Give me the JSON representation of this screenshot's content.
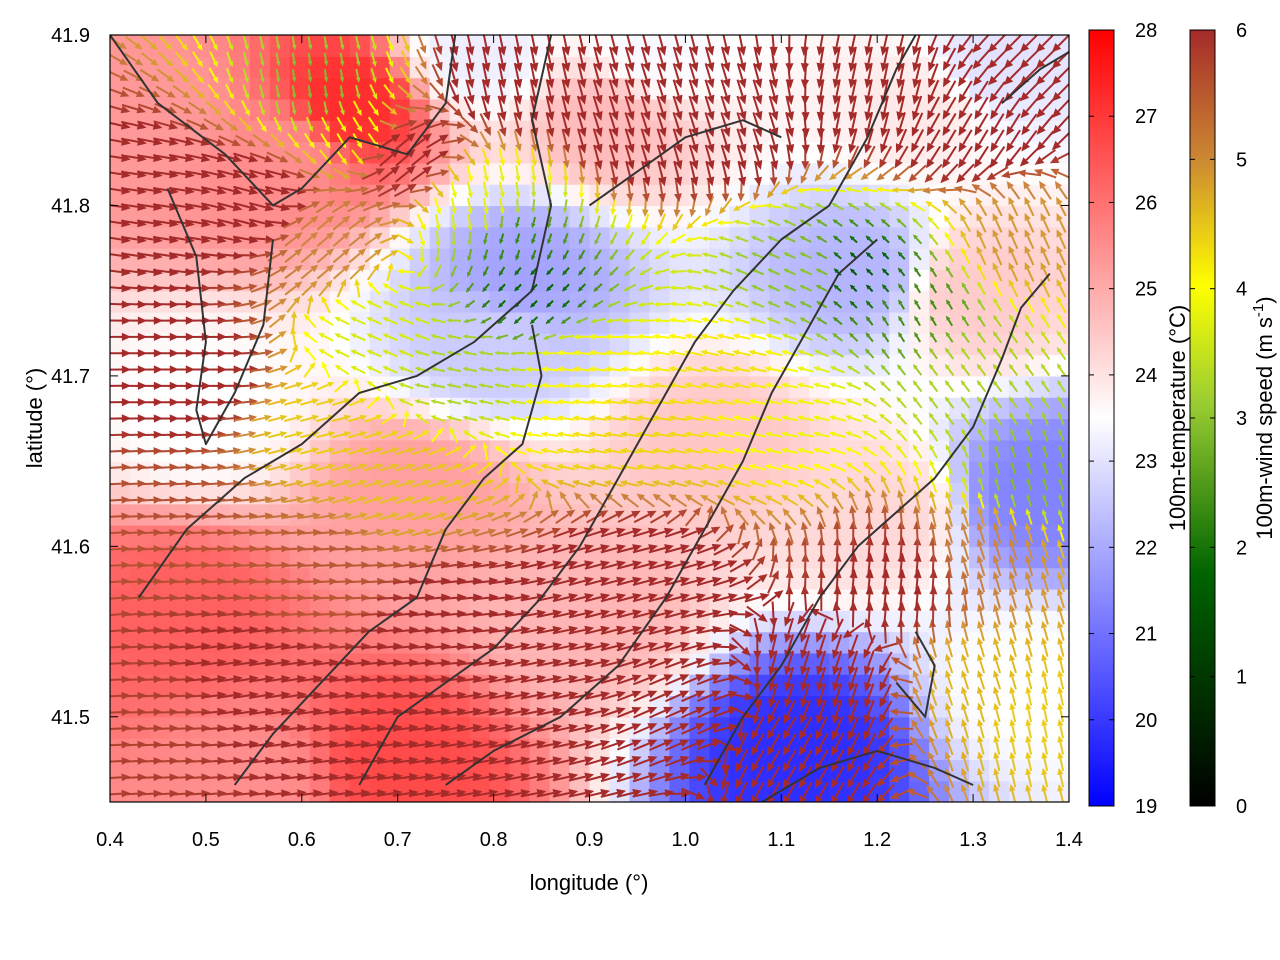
{
  "chart_data": {
    "type": "heatmap",
    "title": "",
    "xlabel": "longitude (°)",
    "ylabel": "latitude (°)",
    "xlim": [
      0.4,
      1.4
    ],
    "ylim": [
      41.45,
      41.9
    ],
    "xticks": [
      0.4,
      0.5,
      0.6,
      0.7,
      0.8,
      0.9,
      1.0,
      1.1,
      1.2,
      1.3,
      1.4
    ],
    "yticks": [
      41.5,
      41.6,
      41.7,
      41.8,
      41.9
    ],
    "xtick_labels": [
      "0.4",
      "0.5",
      "0.6",
      "0.7",
      "0.8",
      "0.9",
      "1.0",
      "1.1",
      "1.2",
      "1.3",
      "1.4"
    ],
    "ytick_labels": [
      "41.5",
      "41.6",
      "41.7",
      "41.8",
      "41.9"
    ],
    "grid": false,
    "temperature_colorbar": {
      "label": "100m-temperature (°C)",
      "range": [
        19,
        28
      ],
      "ticks": [
        19,
        20,
        21,
        22,
        23,
        24,
        25,
        26,
        27,
        28
      ],
      "tick_labels": [
        "19",
        "20",
        "21",
        "22",
        "23",
        "24",
        "25",
        "26",
        "27",
        "28"
      ],
      "colors": [
        "#0000ff",
        "#ffffff",
        "#ff0000"
      ]
    },
    "windspeed_colorbar": {
      "label_main": "100m-wind speed (m s",
      "label_sup": "-1",
      "label_end": ")",
      "range": [
        0,
        6
      ],
      "ticks": [
        0,
        1,
        2,
        3,
        4,
        5,
        6
      ],
      "tick_labels": [
        "0",
        "1",
        "2",
        "3",
        "4",
        "5",
        "6"
      ],
      "colors": [
        "#000000",
        "#006400",
        "#9acd32",
        "#ffff00",
        "#cd853f",
        "#a52a2a"
      ]
    },
    "temperature_field": [
      {
        "lon": 0.47,
        "lat": 41.56,
        "t": 26.3
      },
      {
        "lon": 0.7,
        "lat": 41.47,
        "t": 26.7
      },
      {
        "lon": 0.65,
        "lat": 41.86,
        "t": 27.2
      },
      {
        "lon": 0.58,
        "lat": 41.83,
        "t": 25.5
      },
      {
        "lon": 0.5,
        "lat": 41.68,
        "t": 23.5
      },
      {
        "lon": 0.8,
        "lat": 41.72,
        "t": 22.6
      },
      {
        "lon": 0.83,
        "lat": 41.76,
        "t": 21.9
      },
      {
        "lon": 1.18,
        "lat": 41.76,
        "t": 22.2
      },
      {
        "lon": 1.12,
        "lat": 41.48,
        "t": 19.8
      },
      {
        "lon": 1.37,
        "lat": 41.63,
        "t": 21.3
      },
      {
        "lon": 0.9,
        "lat": 41.56,
        "t": 24.8
      },
      {
        "lon": 0.72,
        "lat": 41.63,
        "t": 25.2
      },
      {
        "lon": 1.03,
        "lat": 41.66,
        "t": 24.5
      },
      {
        "lon": 0.92,
        "lat": 41.85,
        "t": 24.7
      },
      {
        "lon": 1.25,
        "lat": 41.86,
        "t": 23.9
      },
      {
        "lon": 1.3,
        "lat": 41.75,
        "t": 24.4
      },
      {
        "lon": 1.36,
        "lat": 41.52,
        "t": 23.5
      },
      {
        "lon": 0.45,
        "lat": 41.85,
        "t": 25.3
      },
      {
        "lon": 1.32,
        "lat": 41.88,
        "t": 23.0
      },
      {
        "lon": 0.97,
        "lat": 41.89,
        "t": 23.4
      },
      {
        "lon": 0.78,
        "lat": 41.89,
        "t": 23.2
      },
      {
        "lon": 1.2,
        "lat": 41.62,
        "t": 24.2
      },
      {
        "lon": 0.55,
        "lat": 41.46,
        "t": 25.5
      }
    ],
    "wind_field": [
      {
        "lon": 0.45,
        "lat": 41.62,
        "u": 0.98,
        "v": 0.05,
        "s": 5.5
      },
      {
        "lon": 0.45,
        "lat": 41.5,
        "u": 0.99,
        "v": 0.05,
        "s": 5.7
      },
      {
        "lon": 0.55,
        "lat": 41.52,
        "u": 0.97,
        "v": 0.15,
        "s": 6.2
      },
      {
        "lon": 0.55,
        "lat": 41.8,
        "u": 0.95,
        "v": -0.25,
        "s": 6.5
      },
      {
        "lon": 0.45,
        "lat": 41.8,
        "u": 0.98,
        "v": -0.15,
        "s": 6.5
      },
      {
        "lon": 0.48,
        "lat": 41.7,
        "u": 0.99,
        "v": 0.0,
        "s": 6.3
      },
      {
        "lon": 0.62,
        "lat": 41.87,
        "u": 0.15,
        "v": -0.98,
        "s": 2.2
      },
      {
        "lon": 0.66,
        "lat": 41.84,
        "u": 0.5,
        "v": -0.85,
        "s": 3.5
      },
      {
        "lon": 0.62,
        "lat": 41.78,
        "u": 0.7,
        "v": 0.6,
        "s": 4.8
      },
      {
        "lon": 0.7,
        "lat": 41.83,
        "u": 0.75,
        "v": 0.65,
        "s": 6.5
      },
      {
        "lon": 0.62,
        "lat": 41.67,
        "u": 0.97,
        "v": 0.25,
        "s": 4.1
      },
      {
        "lon": 0.7,
        "lat": 41.64,
        "u": 0.96,
        "v": 0.3,
        "s": 4.2
      },
      {
        "lon": 0.68,
        "lat": 41.72,
        "u": -0.9,
        "v": 0.4,
        "s": 3.1
      },
      {
        "lon": 0.76,
        "lat": 41.7,
        "u": -0.95,
        "v": 0.2,
        "s": 2.6
      },
      {
        "lon": 0.82,
        "lat": 41.78,
        "u": -0.3,
        "v": -0.95,
        "s": 1.6
      },
      {
        "lon": 0.84,
        "lat": 41.75,
        "u": -0.6,
        "v": -0.6,
        "s": 1.2
      },
      {
        "lon": 0.79,
        "lat": 41.8,
        "u": 0.2,
        "v": -0.98,
        "s": 3.3
      },
      {
        "lon": 0.9,
        "lat": 41.7,
        "u": -0.98,
        "v": 0.1,
        "s": 3.7
      },
      {
        "lon": 0.95,
        "lat": 41.67,
        "u": -0.98,
        "v": 0.15,
        "s": 4.0
      },
      {
        "lon": 1.05,
        "lat": 41.7,
        "u": -0.98,
        "v": 0.2,
        "s": 3.9
      },
      {
        "lon": 1.1,
        "lat": 41.68,
        "u": -0.97,
        "v": 0.2,
        "s": 3.4
      },
      {
        "lon": 1.12,
        "lat": 41.76,
        "u": -0.9,
        "v": 0.4,
        "s": 2.3
      },
      {
        "lon": 1.18,
        "lat": 41.76,
        "u": -0.7,
        "v": 0.7,
        "s": 1.1
      },
      {
        "lon": 1.24,
        "lat": 41.74,
        "u": -0.5,
        "v": 0.85,
        "s": 1.7
      },
      {
        "lon": 1.3,
        "lat": 41.7,
        "u": -0.6,
        "v": 0.8,
        "s": 2.6
      },
      {
        "lon": 1.36,
        "lat": 41.64,
        "u": -0.3,
        "v": 0.95,
        "s": 2.2
      },
      {
        "lon": 1.35,
        "lat": 41.78,
        "u": -0.4,
        "v": 0.9,
        "s": 4.6
      },
      {
        "lon": 1.32,
        "lat": 41.6,
        "u": -0.3,
        "v": 0.95,
        "s": 4.8
      },
      {
        "lon": 1.3,
        "lat": 41.52,
        "u": -0.3,
        "v": 0.95,
        "s": 4.3
      },
      {
        "lon": 1.37,
        "lat": 41.5,
        "u": -0.2,
        "v": 0.97,
        "s": 4.1
      },
      {
        "lon": 0.95,
        "lat": 41.58,
        "u": 0.96,
        "v": 0.25,
        "s": 6.6
      },
      {
        "lon": 1.0,
        "lat": 41.5,
        "u": 0.9,
        "v": 0.4,
        "s": 6.6
      },
      {
        "lon": 0.85,
        "lat": 41.52,
        "u": 0.97,
        "v": 0.2,
        "s": 6.6
      },
      {
        "lon": 0.75,
        "lat": 41.55,
        "u": 0.99,
        "v": 0.1,
        "s": 6.4
      },
      {
        "lon": 0.62,
        "lat": 41.58,
        "u": 0.99,
        "v": 0.05,
        "s": 5.4
      },
      {
        "lon": 1.15,
        "lat": 41.52,
        "u": -0.3,
        "v": -0.95,
        "s": 6.4
      },
      {
        "lon": 1.1,
        "lat": 41.48,
        "u": -0.5,
        "v": -0.85,
        "s": 6.3
      },
      {
        "lon": 1.22,
        "lat": 41.58,
        "u": 0.1,
        "v": 0.99,
        "s": 6.0
      },
      {
        "lon": 1.05,
        "lat": 41.85,
        "u": 0.3,
        "v": -0.95,
        "s": 6.5
      },
      {
        "lon": 1.2,
        "lat": 41.87,
        "u": -0.2,
        "v": -0.97,
        "s": 6.5
      },
      {
        "lon": 0.95,
        "lat": 41.85,
        "u": 0.3,
        "v": -0.95,
        "s": 6.6
      },
      {
        "lon": 0.82,
        "lat": 41.88,
        "u": 0.2,
        "v": -0.97,
        "s": 6.6
      },
      {
        "lon": 1.3,
        "lat": 41.85,
        "u": -0.5,
        "v": -0.85,
        "s": 6.5
      },
      {
        "lon": 1.36,
        "lat": 41.88,
        "u": -0.7,
        "v": -0.7,
        "s": 6.5
      }
    ],
    "contours": [
      [
        [
          0.4,
          41.9
        ],
        [
          0.45,
          41.86
        ],
        [
          0.52,
          41.83
        ],
        [
          0.57,
          41.8
        ],
        [
          0.6,
          41.81
        ],
        [
          0.65,
          41.84
        ],
        [
          0.71,
          41.83
        ],
        [
          0.75,
          41.86
        ],
        [
          0.76,
          41.9
        ]
      ],
      [
        [
          0.46,
          41.81
        ],
        [
          0.49,
          41.77
        ],
        [
          0.5,
          41.72
        ],
        [
          0.49,
          41.68
        ],
        [
          0.5,
          41.66
        ],
        [
          0.53,
          41.69
        ],
        [
          0.56,
          41.73
        ],
        [
          0.57,
          41.78
        ]
      ],
      [
        [
          0.43,
          41.57
        ],
        [
          0.48,
          41.61
        ],
        [
          0.54,
          41.64
        ],
        [
          0.6,
          41.66
        ],
        [
          0.66,
          41.69
        ],
        [
          0.72,
          41.7
        ],
        [
          0.78,
          41.72
        ],
        [
          0.84,
          41.75
        ],
        [
          0.86,
          41.8
        ],
        [
          0.84,
          41.85
        ],
        [
          0.86,
          41.9
        ]
      ],
      [
        [
          0.53,
          41.46
        ],
        [
          0.57,
          41.49
        ],
        [
          0.62,
          41.52
        ],
        [
          0.67,
          41.55
        ],
        [
          0.72,
          41.57
        ],
        [
          0.75,
          41.61
        ],
        [
          0.79,
          41.64
        ],
        [
          0.83,
          41.66
        ],
        [
          0.85,
          41.7
        ],
        [
          0.84,
          41.73
        ]
      ],
      [
        [
          0.66,
          41.46
        ],
        [
          0.7,
          41.5
        ],
        [
          0.75,
          41.52
        ],
        [
          0.8,
          41.54
        ],
        [
          0.85,
          41.57
        ],
        [
          0.89,
          41.6
        ],
        [
          0.93,
          41.64
        ],
        [
          0.97,
          41.68
        ],
        [
          1.01,
          41.72
        ],
        [
          1.05,
          41.75
        ],
        [
          1.1,
          41.78
        ],
        [
          1.15,
          41.8
        ],
        [
          1.19,
          41.84
        ],
        [
          1.22,
          41.88
        ],
        [
          1.24,
          41.9
        ]
      ],
      [
        [
          0.75,
          41.46
        ],
        [
          0.8,
          41.48
        ],
        [
          0.87,
          41.5
        ],
        [
          0.93,
          41.53
        ],
        [
          0.98,
          41.57
        ],
        [
          1.02,
          41.61
        ],
        [
          1.06,
          41.65
        ],
        [
          1.09,
          41.69
        ],
        [
          1.13,
          41.73
        ],
        [
          1.16,
          41.76
        ],
        [
          1.2,
          41.78
        ]
      ],
      [
        [
          1.02,
          41.46
        ],
        [
          1.06,
          41.5
        ],
        [
          1.1,
          41.53
        ],
        [
          1.14,
          41.57
        ],
        [
          1.18,
          41.6
        ],
        [
          1.22,
          41.62
        ],
        [
          1.26,
          41.64
        ],
        [
          1.3,
          41.67
        ],
        [
          1.33,
          41.71
        ],
        [
          1.35,
          41.74
        ],
        [
          1.38,
          41.76
        ]
      ],
      [
        [
          1.08,
          41.45
        ],
        [
          1.14,
          41.47
        ],
        [
          1.2,
          41.48
        ],
        [
          1.26,
          41.47
        ],
        [
          1.3,
          41.46
        ]
      ],
      [
        [
          1.22,
          41.52
        ],
        [
          1.25,
          41.5
        ],
        [
          1.26,
          41.53
        ],
        [
          1.24,
          41.55
        ]
      ],
      [
        [
          0.9,
          41.8
        ],
        [
          0.95,
          41.82
        ],
        [
          1.0,
          41.84
        ],
        [
          1.06,
          41.85
        ],
        [
          1.1,
          41.84
        ]
      ],
      [
        [
          1.33,
          41.86
        ],
        [
          1.37,
          41.88
        ],
        [
          1.4,
          41.89
        ]
      ]
    ]
  }
}
